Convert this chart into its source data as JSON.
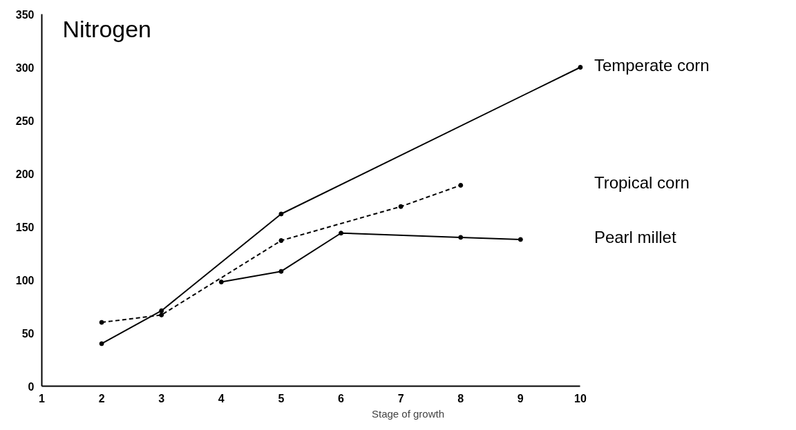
{
  "chart_data": {
    "type": "line",
    "title": "Nitrogen",
    "xlabel": "Stage of growth",
    "xlim": [
      1,
      10
    ],
    "xticks": [
      1,
      2,
      3,
      4,
      5,
      6,
      7,
      8,
      9,
      10
    ],
    "ylim": [
      0,
      350
    ],
    "yticks": [
      0,
      50,
      100,
      150,
      200,
      250,
      300,
      350
    ],
    "grid": false,
    "marker": "circle",
    "series": [
      {
        "name": "Temperate corn",
        "color": "#000000",
        "line_style": "solid",
        "x": [
          2,
          3,
          5,
          10
        ],
        "values": [
          40,
          71,
          162,
          300
        ]
      },
      {
        "name": "Tropical corn",
        "color": "#000000",
        "line_style": "dashed",
        "x": [
          2,
          3,
          5,
          7,
          8
        ],
        "values": [
          60,
          67,
          137,
          169,
          189
        ]
      },
      {
        "name": "Pearl millet",
        "color": "#000000",
        "line_style": "solid",
        "x": [
          4,
          5,
          6,
          8,
          9
        ],
        "values": [
          98,
          108,
          144,
          140,
          138
        ]
      }
    ]
  }
}
